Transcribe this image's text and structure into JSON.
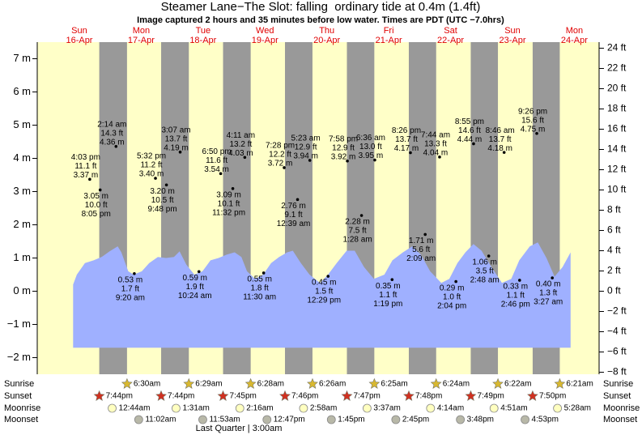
{
  "chart_data": {
    "type": "area",
    "title": "Steamer Lane−The Slot: falling  ordinary tide at 0.4m (1.4ft)",
    "subtitle": "Image captured 2 hours and 35 minutes before low water. Times are PDT (UTC −7.0hrs)",
    "categories": [
      "16-Apr",
      "17-Apr",
      "18-Apr",
      "19-Apr",
      "20-Apr",
      "21-Apr",
      "22-Apr",
      "23-Apr",
      "24-Apr"
    ],
    "weekdays": [
      "Sun",
      "Mon",
      "Tue",
      "Wed",
      "Thu",
      "Fri",
      "Sat",
      "Sun",
      "Mon"
    ],
    "day_color": "#e00000",
    "xlim": [
      -0.18,
      8.9
    ],
    "ylim": [
      -2.5,
      7.5
    ],
    "yticks": [
      {
        "value": 7,
        "label": "7 m"
      },
      {
        "value": 6,
        "label": "6 m"
      },
      {
        "value": 5,
        "label": "5 m"
      },
      {
        "value": 4,
        "label": "4 m"
      },
      {
        "value": 3,
        "label": "3 m"
      },
      {
        "value": 2,
        "label": "2 m"
      },
      {
        "value": 1,
        "label": "1 m"
      },
      {
        "value": 0,
        "label": "0 m"
      },
      {
        "value": -1,
        "label": "−1 m"
      },
      {
        "value": -2,
        "label": "−2 m"
      }
    ],
    "y2lim": [
      -8.2,
      24.6
    ],
    "y2ticks": [
      {
        "value": 24,
        "label": "24 ft"
      },
      {
        "value": 22,
        "label": "22 ft"
      },
      {
        "value": 20,
        "label": "20 ft"
      },
      {
        "value": 18,
        "label": "18 ft"
      },
      {
        "value": 16,
        "label": "16 ft"
      },
      {
        "value": 14,
        "label": "14 ft"
      },
      {
        "value": 12,
        "label": "12 ft"
      },
      {
        "value": 10,
        "label": "10 ft"
      },
      {
        "value": 8,
        "label": "8 ft"
      },
      {
        "value": 6,
        "label": "6 ft"
      },
      {
        "value": 4,
        "label": "4 ft"
      },
      {
        "value": 2,
        "label": "2 ft"
      },
      {
        "value": 0,
        "label": "0 ft"
      },
      {
        "value": -2,
        "label": "−2 ft"
      },
      {
        "value": -4,
        "label": "−4 ft"
      },
      {
        "value": -6,
        "label": "−6 ft"
      },
      {
        "value": -8,
        "label": "−8 ft"
      }
    ],
    "curve": {
      "color": "#9fb0ff",
      "area_bottom": -1.7,
      "x": [
        0.4,
        0.46,
        0.59,
        0.73,
        0.86,
        0.99,
        1.12,
        1.18,
        1.29,
        1.38,
        1.51,
        1.63,
        1.77,
        1.9,
        2.03,
        2.12,
        2.23,
        2.36,
        2.49,
        2.62,
        2.75,
        2.88,
        3.01,
        3.12,
        3.21,
        3.34,
        3.47,
        3.6,
        3.73,
        3.86,
        3.95,
        4.08,
        4.22,
        4.39,
        4.52,
        4.66,
        4.82,
        4.95,
        5.1,
        5.26,
        5.43,
        5.56,
        5.73,
        5.88,
        6.02,
        6.17,
        6.35,
        6.48,
        6.61,
        6.74,
        6.87,
        7.0,
        7.16,
        7.33,
        7.48,
        7.61,
        7.78,
        7.91,
        8.05,
        8.18,
        8.31,
        8.44
      ],
      "values": [
        0.2,
        0.5,
        0.85,
        0.93,
        1.03,
        1.2,
        1.35,
        1.17,
        0.6,
        0.5,
        0.6,
        0.85,
        1.03,
        1.0,
        1.03,
        1.2,
        0.8,
        0.5,
        0.6,
        0.93,
        1.0,
        1.1,
        1.17,
        1.03,
        0.6,
        0.37,
        0.5,
        0.85,
        1.03,
        1.17,
        1.22,
        0.85,
        0.5,
        0.25,
        0.5,
        0.85,
        1.22,
        1.22,
        0.73,
        0.37,
        0.5,
        0.93,
        1.17,
        1.35,
        1.1,
        0.6,
        0.25,
        0.37,
        0.85,
        1.17,
        1.42,
        1.22,
        0.73,
        0.25,
        0.37,
        0.93,
        1.35,
        1.47,
        1.0,
        0.44,
        0.73,
        1.17
      ]
    },
    "tides": {
      "days": [
        "16-Apr",
        "16-Apr",
        "17-Apr",
        "17-Apr",
        "17-Apr",
        "17-Apr",
        "18-Apr",
        "18-Apr",
        "18-Apr",
        "18-Apr",
        "19-Apr",
        "19-Apr",
        "19-Apr",
        "20-Apr",
        "20-Apr",
        "20-Apr",
        "20-Apr",
        "21-Apr",
        "21-Apr",
        "21-Apr",
        "21-Apr",
        "22-Apr",
        "22-Apr",
        "22-Apr",
        "22-Apr",
        "23-Apr",
        "23-Apr",
        "23-Apr",
        "23-Apr",
        "24-Apr"
      ],
      "times": [
        "4:03 pm",
        "8:05 pm",
        "2:14 am",
        "9:20 am",
        "5:32 pm",
        "9:48 pm",
        "3:07 am",
        "10:24 am",
        "6:50 pm",
        "11:32 pm",
        "4:11 am",
        "11:30 am",
        "7:28 pm",
        "12:39 am",
        "5:23 am",
        "12:29 pm",
        "7:58 pm",
        "1:28 am",
        "6:36 am",
        "1:19 pm",
        "8:26 pm",
        "2:09 am",
        "7:44 am",
        "2:04 pm",
        "8:55 pm",
        "2:48 am",
        "8:46 am",
        "2:46 pm",
        "9:26 pm",
        "3:27 am"
      ],
      "values": [
        3.37,
        3.05,
        4.36,
        0.53,
        3.4,
        3.2,
        4.19,
        0.59,
        3.54,
        3.09,
        4.03,
        0.55,
        3.72,
        2.76,
        3.94,
        0.45,
        3.92,
        2.28,
        3.95,
        0.35,
        4.17,
        1.71,
        4.04,
        0.29,
        4.44,
        1.06,
        4.18,
        0.33,
        4.75,
        0.4
      ],
      "value_labels": [
        "3.37 m",
        "3.05 m",
        "4.36 m",
        "0.53 m",
        "3.40 m",
        "3.20 m",
        "4.19 m",
        "0.59 m",
        "3.54 m",
        "3.09 m",
        "4.03 m",
        "0.55 m",
        "3.72 m",
        "2.76 m",
        "3.94 m",
        "0.45 m",
        "3.92 m",
        "2.28 m",
        "3.95 m",
        "0.35 m",
        "4.17 m",
        "1.71 m",
        "4.04 m",
        "0.29 m",
        "4.44 m",
        "1.06 m",
        "4.18 m",
        "0.33 m",
        "4.75 m",
        "0.40 m"
      ],
      "ft_labels": [
        "11.1 ft",
        "10.0 ft",
        "14.3 ft",
        "1.7 ft",
        "11.2 ft",
        "10.5 ft",
        "13.7 ft",
        "1.9 ft",
        "11.6 ft",
        "10.1 ft",
        "13.2 ft",
        "1.8 ft",
        "12.2 ft",
        "9.1 ft",
        "12.9 ft",
        "1.5 ft",
        "12.9 ft",
        "7.5 ft",
        "13.0 ft",
        "1.1 ft",
        "13.7 ft",
        "5.6 ft",
        "13.3 ft",
        "1.0 ft",
        "14.6 ft",
        "3.5 ft",
        "13.7 ft",
        "1.1 ft",
        "15.6 ft",
        "1.3 ft"
      ]
    },
    "sunrise": {
      "label": "Sunrise",
      "color": "#d8b830",
      "days": [
        "17-Apr",
        "18-Apr",
        "19-Apr",
        "20-Apr",
        "21-Apr",
        "22-Apr",
        "23-Apr",
        "24-Apr"
      ],
      "times": [
        "6:30am",
        "6:29am",
        "6:28am",
        "6:26am",
        "6:25am",
        "6:24am",
        "6:22am",
        "6:21am"
      ]
    },
    "sunset": {
      "label": "Sunset",
      "color": "#d03020",
      "days": [
        "16-Apr",
        "17-Apr",
        "18-Apr",
        "19-Apr",
        "20-Apr",
        "21-Apr",
        "22-Apr",
        "23-Apr"
      ],
      "times": [
        "7:44pm",
        "7:44pm",
        "7:45pm",
        "7:46pm",
        "7:47pm",
        "7:48pm",
        "7:49pm",
        "7:50pm"
      ]
    },
    "moonrise": {
      "label": "Moonrise",
      "color": "#ffffc0",
      "days": [
        "17-Apr",
        "18-Apr",
        "19-Apr",
        "20-Apr",
        "21-Apr",
        "22-Apr",
        "23-Apr",
        "24-Apr"
      ],
      "times": [
        "12:44am",
        "1:31am",
        "2:16am",
        "2:58am",
        "3:37am",
        "4:14am",
        "4:51am",
        "5:28am"
      ]
    },
    "moonset": {
      "label": "Moonset",
      "color": "#b8b8a8",
      "days": [
        "17-Apr",
        "18-Apr",
        "19-Apr",
        "20-Apr",
        "21-Apr",
        "22-Apr",
        "23-Apr"
      ],
      "times": [
        "11:02am",
        "11:53am",
        "12:47pm",
        "1:45pm",
        "2:45pm",
        "3:48pm",
        "4:53pm"
      ]
    },
    "moon_phase": "Last Quarter | 3:00am"
  }
}
